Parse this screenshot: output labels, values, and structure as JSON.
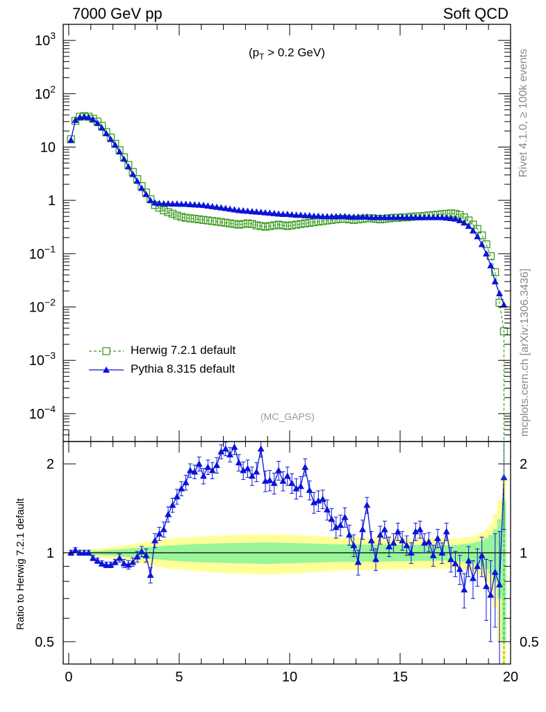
{
  "header": {
    "left": "7000 GeV pp",
    "right": "Soft QCD"
  },
  "side_labels": {
    "top": "Rivet 4.1.0, ≥ 100k events",
    "bottom": "mcplots.cern.ch [arXiv:1306.3436]"
  },
  "annotation": {
    "cut_prefix": "(p",
    "cut_sub": "T",
    "cut_suffix": " > 0.2 GeV)",
    "analysis": "(MC_GAPS)"
  },
  "colors": {
    "herwig": "#3a9a1f",
    "pythia": "#0a14d9",
    "band_inner": "#99f599",
    "band_outer": "#ffff99",
    "axis": "#000000"
  },
  "chart_data": {
    "type": "line",
    "x": [
      0.1,
      0.3,
      0.5,
      0.7,
      0.9,
      1.1,
      1.3,
      1.5,
      1.7,
      1.9,
      2.1,
      2.3,
      2.5,
      2.7,
      2.9,
      3.1,
      3.3,
      3.5,
      3.7,
      3.9,
      4.1,
      4.3,
      4.5,
      4.7,
      4.9,
      5.1,
      5.3,
      5.5,
      5.7,
      5.9,
      6.1,
      6.3,
      6.5,
      6.7,
      6.9,
      7.1,
      7.3,
      7.5,
      7.7,
      7.9,
      8.1,
      8.3,
      8.5,
      8.7,
      8.9,
      9.1,
      9.3,
      9.5,
      9.7,
      9.9,
      10.1,
      10.3,
      10.5,
      10.7,
      10.9,
      11.1,
      11.3,
      11.5,
      11.7,
      11.9,
      12.1,
      12.3,
      12.5,
      12.7,
      12.9,
      13.1,
      13.3,
      13.5,
      13.7,
      13.9,
      14.1,
      14.3,
      14.5,
      14.7,
      14.9,
      15.1,
      15.3,
      15.5,
      15.7,
      15.9,
      16.1,
      16.3,
      16.5,
      16.7,
      16.9,
      17.1,
      17.3,
      17.5,
      17.7,
      17.9,
      18.1,
      18.3,
      18.5,
      18.7,
      18.9,
      19.1,
      19.3,
      19.5,
      19.7
    ],
    "main_panel": {
      "ylabel": "",
      "yscale": "log",
      "ylim": [
        3e-05,
        2000
      ],
      "yticks": [
        {
          "value": 1000,
          "base": "10",
          "exp": "3"
        },
        {
          "value": 100,
          "base": "10",
          "exp": "2"
        },
        {
          "value": 10,
          "base": "10",
          "exp": ""
        },
        {
          "value": 1,
          "base": "1",
          "exp": ""
        },
        {
          "value": 0.1,
          "base": "10",
          "exp": "−1"
        },
        {
          "value": 0.01,
          "base": "10",
          "exp": "−2"
        },
        {
          "value": 0.001,
          "base": "10",
          "exp": "−3"
        },
        {
          "value": 0.0001,
          "base": "10",
          "exp": "−4"
        }
      ],
      "series": [
        {
          "name": "Herwig 7.2.1 default",
          "marker": "open-square",
          "line": "dashed",
          "values": [
            14,
            31,
            37,
            38,
            37,
            34,
            30,
            25,
            19,
            15,
            11.5,
            8.7,
            6.4,
            4.6,
            3.4,
            2.5,
            1.85,
            1.4,
            1.05,
            0.82,
            0.73,
            0.65,
            0.6,
            0.56,
            0.52,
            0.49,
            0.47,
            0.46,
            0.45,
            0.44,
            0.43,
            0.42,
            0.41,
            0.4,
            0.39,
            0.38,
            0.37,
            0.36,
            0.35,
            0.36,
            0.37,
            0.36,
            0.34,
            0.33,
            0.32,
            0.33,
            0.34,
            0.35,
            0.34,
            0.33,
            0.34,
            0.35,
            0.36,
            0.37,
            0.38,
            0.39,
            0.4,
            0.41,
            0.42,
            0.43,
            0.44,
            0.45,
            0.45,
            0.44,
            0.43,
            0.44,
            0.45,
            0.46,
            0.46,
            0.45,
            0.44,
            0.45,
            0.46,
            0.47,
            0.47,
            0.48,
            0.48,
            0.49,
            0.5,
            0.5,
            0.51,
            0.52,
            0.53,
            0.54,
            0.55,
            0.56,
            0.57,
            0.56,
            0.53,
            0.48,
            0.42,
            0.35,
            0.29,
            0.22,
            0.15,
            0.09,
            0.045,
            0.012,
            0.0035
          ]
        },
        {
          "name": "Pythia 8.315 default",
          "marker": "filled-triangle",
          "line": "solid",
          "values": [
            13.5,
            32,
            36,
            37,
            36,
            33,
            28,
            23,
            18,
            14,
            11,
            8.2,
            6,
            4.3,
            3.1,
            2.3,
            1.7,
            1.3,
            1.0,
            0.9,
            0.88,
            0.87,
            0.87,
            0.86,
            0.86,
            0.85,
            0.85,
            0.84,
            0.83,
            0.82,
            0.81,
            0.79,
            0.77,
            0.75,
            0.73,
            0.71,
            0.69,
            0.67,
            0.65,
            0.64,
            0.63,
            0.62,
            0.61,
            0.6,
            0.59,
            0.58,
            0.57,
            0.56,
            0.55,
            0.55,
            0.54,
            0.53,
            0.53,
            0.52,
            0.52,
            0.51,
            0.51,
            0.5,
            0.5,
            0.5,
            0.5,
            0.5,
            0.5,
            0.49,
            0.49,
            0.49,
            0.49,
            0.49,
            0.48,
            0.48,
            0.48,
            0.48,
            0.48,
            0.48,
            0.48,
            0.48,
            0.48,
            0.48,
            0.48,
            0.48,
            0.48,
            0.48,
            0.48,
            0.48,
            0.48,
            0.47,
            0.46,
            0.45,
            0.42,
            0.38,
            0.33,
            0.27,
            0.21,
            0.15,
            0.1,
            0.06,
            0.03,
            0.018,
            0.011
          ]
        }
      ]
    },
    "ratio_panel": {
      "ylabel": "Ratio to Herwig 7.2.1 default",
      "yscale": "log",
      "ylim": [
        0.42,
        2.38
      ],
      "yticks": [
        {
          "value": 2,
          "label": "2"
        },
        {
          "value": 1,
          "label": "1"
        },
        {
          "value": 0.5,
          "label": "0.5"
        }
      ],
      "reference": 1,
      "band_inner": [
        0.005,
        0.006,
        0.008,
        0.01,
        0.012,
        0.014,
        0.016,
        0.018,
        0.02,
        0.022,
        0.024,
        0.027,
        0.03,
        0.033,
        0.036,
        0.039,
        0.042,
        0.045,
        0.048,
        0.05,
        0.052,
        0.055,
        0.058,
        0.06,
        0.062,
        0.064,
        0.066,
        0.068,
        0.07,
        0.071,
        0.072,
        0.073,
        0.074,
        0.075,
        0.076,
        0.077,
        0.078,
        0.079,
        0.08,
        0.08,
        0.08,
        0.081,
        0.082,
        0.083,
        0.084,
        0.083,
        0.082,
        0.081,
        0.08,
        0.08,
        0.079,
        0.078,
        0.077,
        0.076,
        0.075,
        0.074,
        0.073,
        0.072,
        0.071,
        0.07,
        0.069,
        0.068,
        0.068,
        0.068,
        0.068,
        0.068,
        0.067,
        0.066,
        0.066,
        0.066,
        0.066,
        0.066,
        0.065,
        0.064,
        0.064,
        0.064,
        0.064,
        0.063,
        0.062,
        0.062,
        0.062,
        0.061,
        0.06,
        0.06,
        0.06,
        0.06,
        0.06,
        0.062,
        0.065,
        0.07,
        0.075,
        0.08,
        0.09,
        0.1,
        0.12,
        0.15,
        0.2,
        0.3,
        0.5
      ],
      "band_outer": [
        0.01,
        0.012,
        0.015,
        0.02,
        0.024,
        0.028,
        0.032,
        0.036,
        0.04,
        0.045,
        0.05,
        0.055,
        0.06,
        0.065,
        0.07,
        0.076,
        0.082,
        0.088,
        0.094,
        0.1,
        0.105,
        0.11,
        0.115,
        0.118,
        0.121,
        0.124,
        0.127,
        0.13,
        0.132,
        0.134,
        0.136,
        0.138,
        0.14,
        0.142,
        0.144,
        0.146,
        0.148,
        0.15,
        0.151,
        0.152,
        0.152,
        0.153,
        0.154,
        0.155,
        0.156,
        0.155,
        0.154,
        0.153,
        0.152,
        0.151,
        0.15,
        0.148,
        0.146,
        0.144,
        0.142,
        0.14,
        0.138,
        0.136,
        0.134,
        0.132,
        0.13,
        0.128,
        0.127,
        0.127,
        0.127,
        0.127,
        0.126,
        0.125,
        0.124,
        0.124,
        0.124,
        0.124,
        0.123,
        0.122,
        0.121,
        0.121,
        0.121,
        0.12,
        0.119,
        0.118,
        0.118,
        0.117,
        0.116,
        0.116,
        0.116,
        0.116,
        0.116,
        0.118,
        0.12,
        0.125,
        0.13,
        0.14,
        0.15,
        0.17,
        0.2,
        0.25,
        0.35,
        0.5,
        0.8
      ],
      "series": [
        {
          "name": "Pythia 8.315 default / Herwig 7.2.1 default",
          "values": [
            1.0,
            1.02,
            1.0,
            1.0,
            1.0,
            0.96,
            0.94,
            0.92,
            0.91,
            0.91,
            0.93,
            0.96,
            0.92,
            0.91,
            0.93,
            0.97,
            1.01,
            0.98,
            0.84,
            1.1,
            1.16,
            1.2,
            1.35,
            1.45,
            1.55,
            1.65,
            1.73,
            1.9,
            1.88,
            2.0,
            1.82,
            1.95,
            1.9,
            1.98,
            2.2,
            2.25,
            2.15,
            2.28,
            2.02,
            1.9,
            1.93,
            1.82,
            1.88,
            2.25,
            1.75,
            1.76,
            1.72,
            1.9,
            1.75,
            1.82,
            1.72,
            1.65,
            1.68,
            1.95,
            1.63,
            1.48,
            1.5,
            1.52,
            1.4,
            1.3,
            1.22,
            1.24,
            1.32,
            1.15,
            1.06,
            0.93,
            1.2,
            1.45,
            1.1,
            0.95,
            1.15,
            1.2,
            1.05,
            1.08,
            1.18,
            1.1,
            1.06,
            1.0,
            1.18,
            1.2,
            1.08,
            1.09,
            0.98,
            1.12,
            1.0,
            1.18,
            0.95,
            0.92,
            0.88,
            0.75,
            0.94,
            0.82,
            0.9,
            0.98,
            0.77,
            0.72,
            0.86,
            0.78,
            1.8
          ],
          "errors": [
            0.02,
            0.02,
            0.02,
            0.02,
            0.02,
            0.02,
            0.02,
            0.02,
            0.02,
            0.02,
            0.02,
            0.03,
            0.03,
            0.03,
            0.03,
            0.04,
            0.04,
            0.05,
            0.05,
            0.06,
            0.06,
            0.07,
            0.08,
            0.08,
            0.09,
            0.09,
            0.1,
            0.1,
            0.1,
            0.11,
            0.11,
            0.11,
            0.12,
            0.12,
            0.12,
            0.12,
            0.12,
            0.13,
            0.13,
            0.13,
            0.13,
            0.13,
            0.14,
            0.14,
            0.14,
            0.14,
            0.14,
            0.14,
            0.13,
            0.13,
            0.13,
            0.13,
            0.13,
            0.13,
            0.12,
            0.12,
            0.12,
            0.11,
            0.11,
            0.11,
            0.1,
            0.1,
            0.1,
            0.09,
            0.09,
            0.09,
            0.09,
            0.09,
            0.08,
            0.08,
            0.08,
            0.08,
            0.08,
            0.08,
            0.08,
            0.08,
            0.08,
            0.08,
            0.08,
            0.08,
            0.08,
            0.08,
            0.08,
            0.08,
            0.08,
            0.08,
            0.09,
            0.09,
            0.1,
            0.1,
            0.11,
            0.12,
            0.13,
            0.15,
            0.18,
            0.22,
            0.3,
            0.4,
            0.6
          ]
        }
      ]
    },
    "xlim": [
      -0.25,
      20.0
    ],
    "xticks": [
      0,
      5,
      10,
      15,
      20
    ],
    "xlabel": "",
    "legend": "upper-left"
  }
}
